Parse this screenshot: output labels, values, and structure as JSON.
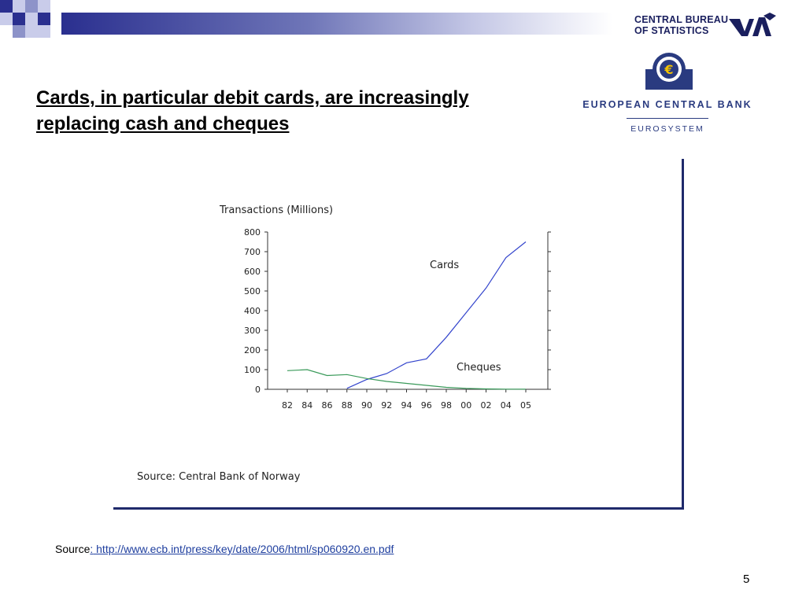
{
  "slide": {
    "title_line1": "Cards, in particular debit cards, are increasingly",
    "title_line2": "replacing cash and cheques",
    "source_label": "Source",
    "source_colon": ":",
    "source_url": " http://www.ecb.int/press/key/date/2006/html/sp060920.en.pdf",
    "page_number": "5"
  },
  "logos": {
    "cbs_line1": "CENTRAL BUREAU",
    "cbs_line2": "OF STATISTICS",
    "ecb_name": "EUROPEAN CENTRAL BANK",
    "ecb_sub": "EUROSYSTEM"
  },
  "colors": {
    "accent_dark": "#2a2f8f",
    "cards_line": "#3344cc",
    "cheques_line": "#3a9a5a"
  },
  "chart_data": {
    "type": "line",
    "title": "Transactions (Millions)",
    "xlabel": "",
    "ylabel": "",
    "categories": [
      "82",
      "84",
      "86",
      "88",
      "90",
      "92",
      "94",
      "96",
      "98",
      "00",
      "02",
      "04",
      "05"
    ],
    "y_ticks": [
      0,
      100,
      200,
      300,
      400,
      500,
      600,
      700,
      800
    ],
    "ylim": [
      0,
      800
    ],
    "grid": false,
    "series": [
      {
        "name": "Cards",
        "x": [
          "88",
          "90",
          "92",
          "94",
          "96",
          "98",
          "00",
          "02",
          "04",
          "05"
        ],
        "values": [
          5,
          50,
          80,
          135,
          155,
          265,
          390,
          515,
          670,
          750
        ]
      },
      {
        "name": "Cheques",
        "x": [
          "82",
          "84",
          "86",
          "88",
          "90",
          "92",
          "94",
          "96",
          "98",
          "00",
          "02",
          "04",
          "05"
        ],
        "values": [
          95,
          100,
          70,
          75,
          55,
          40,
          30,
          20,
          10,
          5,
          2,
          1,
          1
        ]
      }
    ],
    "source_note": "Source: Central Bank of Norway"
  }
}
